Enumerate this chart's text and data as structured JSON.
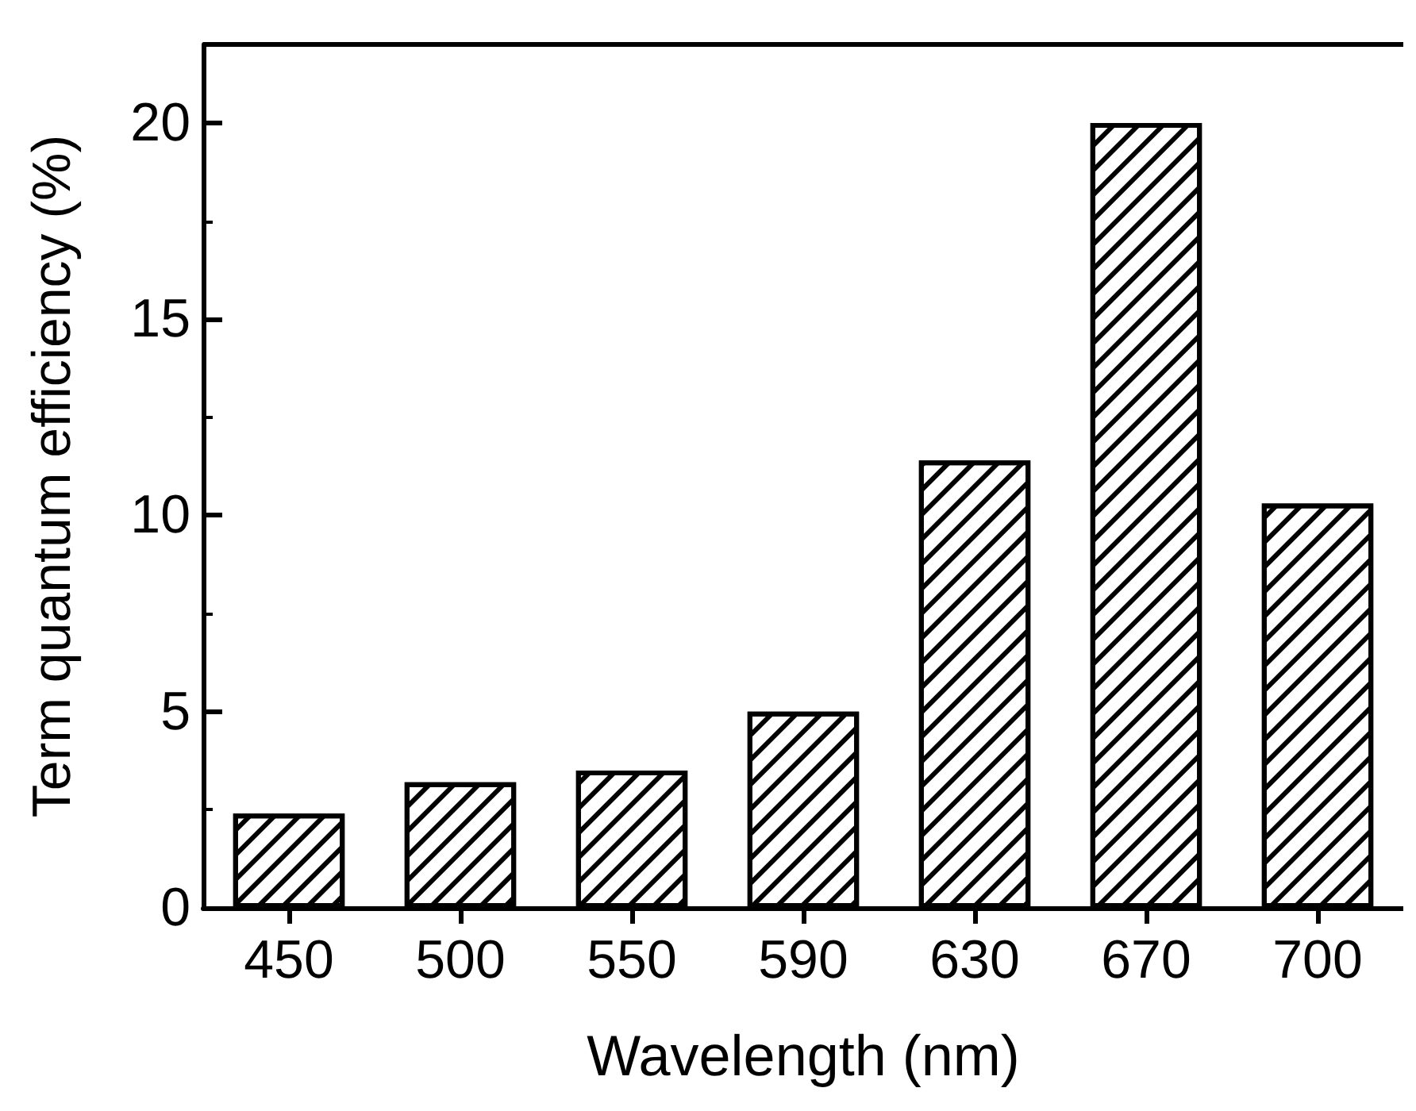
{
  "chart_data": {
    "type": "bar",
    "xlabel": "Wavelength (nm)",
    "ylabel": "Term quantum efficiency (%)",
    "categories": [
      "450",
      "500",
      "550",
      "590",
      "630",
      "670",
      "700"
    ],
    "values": [
      2.4,
      3.2,
      3.5,
      5.0,
      11.4,
      20.0,
      10.3
    ],
    "color": "#000000",
    "ylim": [
      0,
      22
    ],
    "yticks": [
      0,
      5,
      10,
      15,
      20
    ],
    "grid": false
  }
}
